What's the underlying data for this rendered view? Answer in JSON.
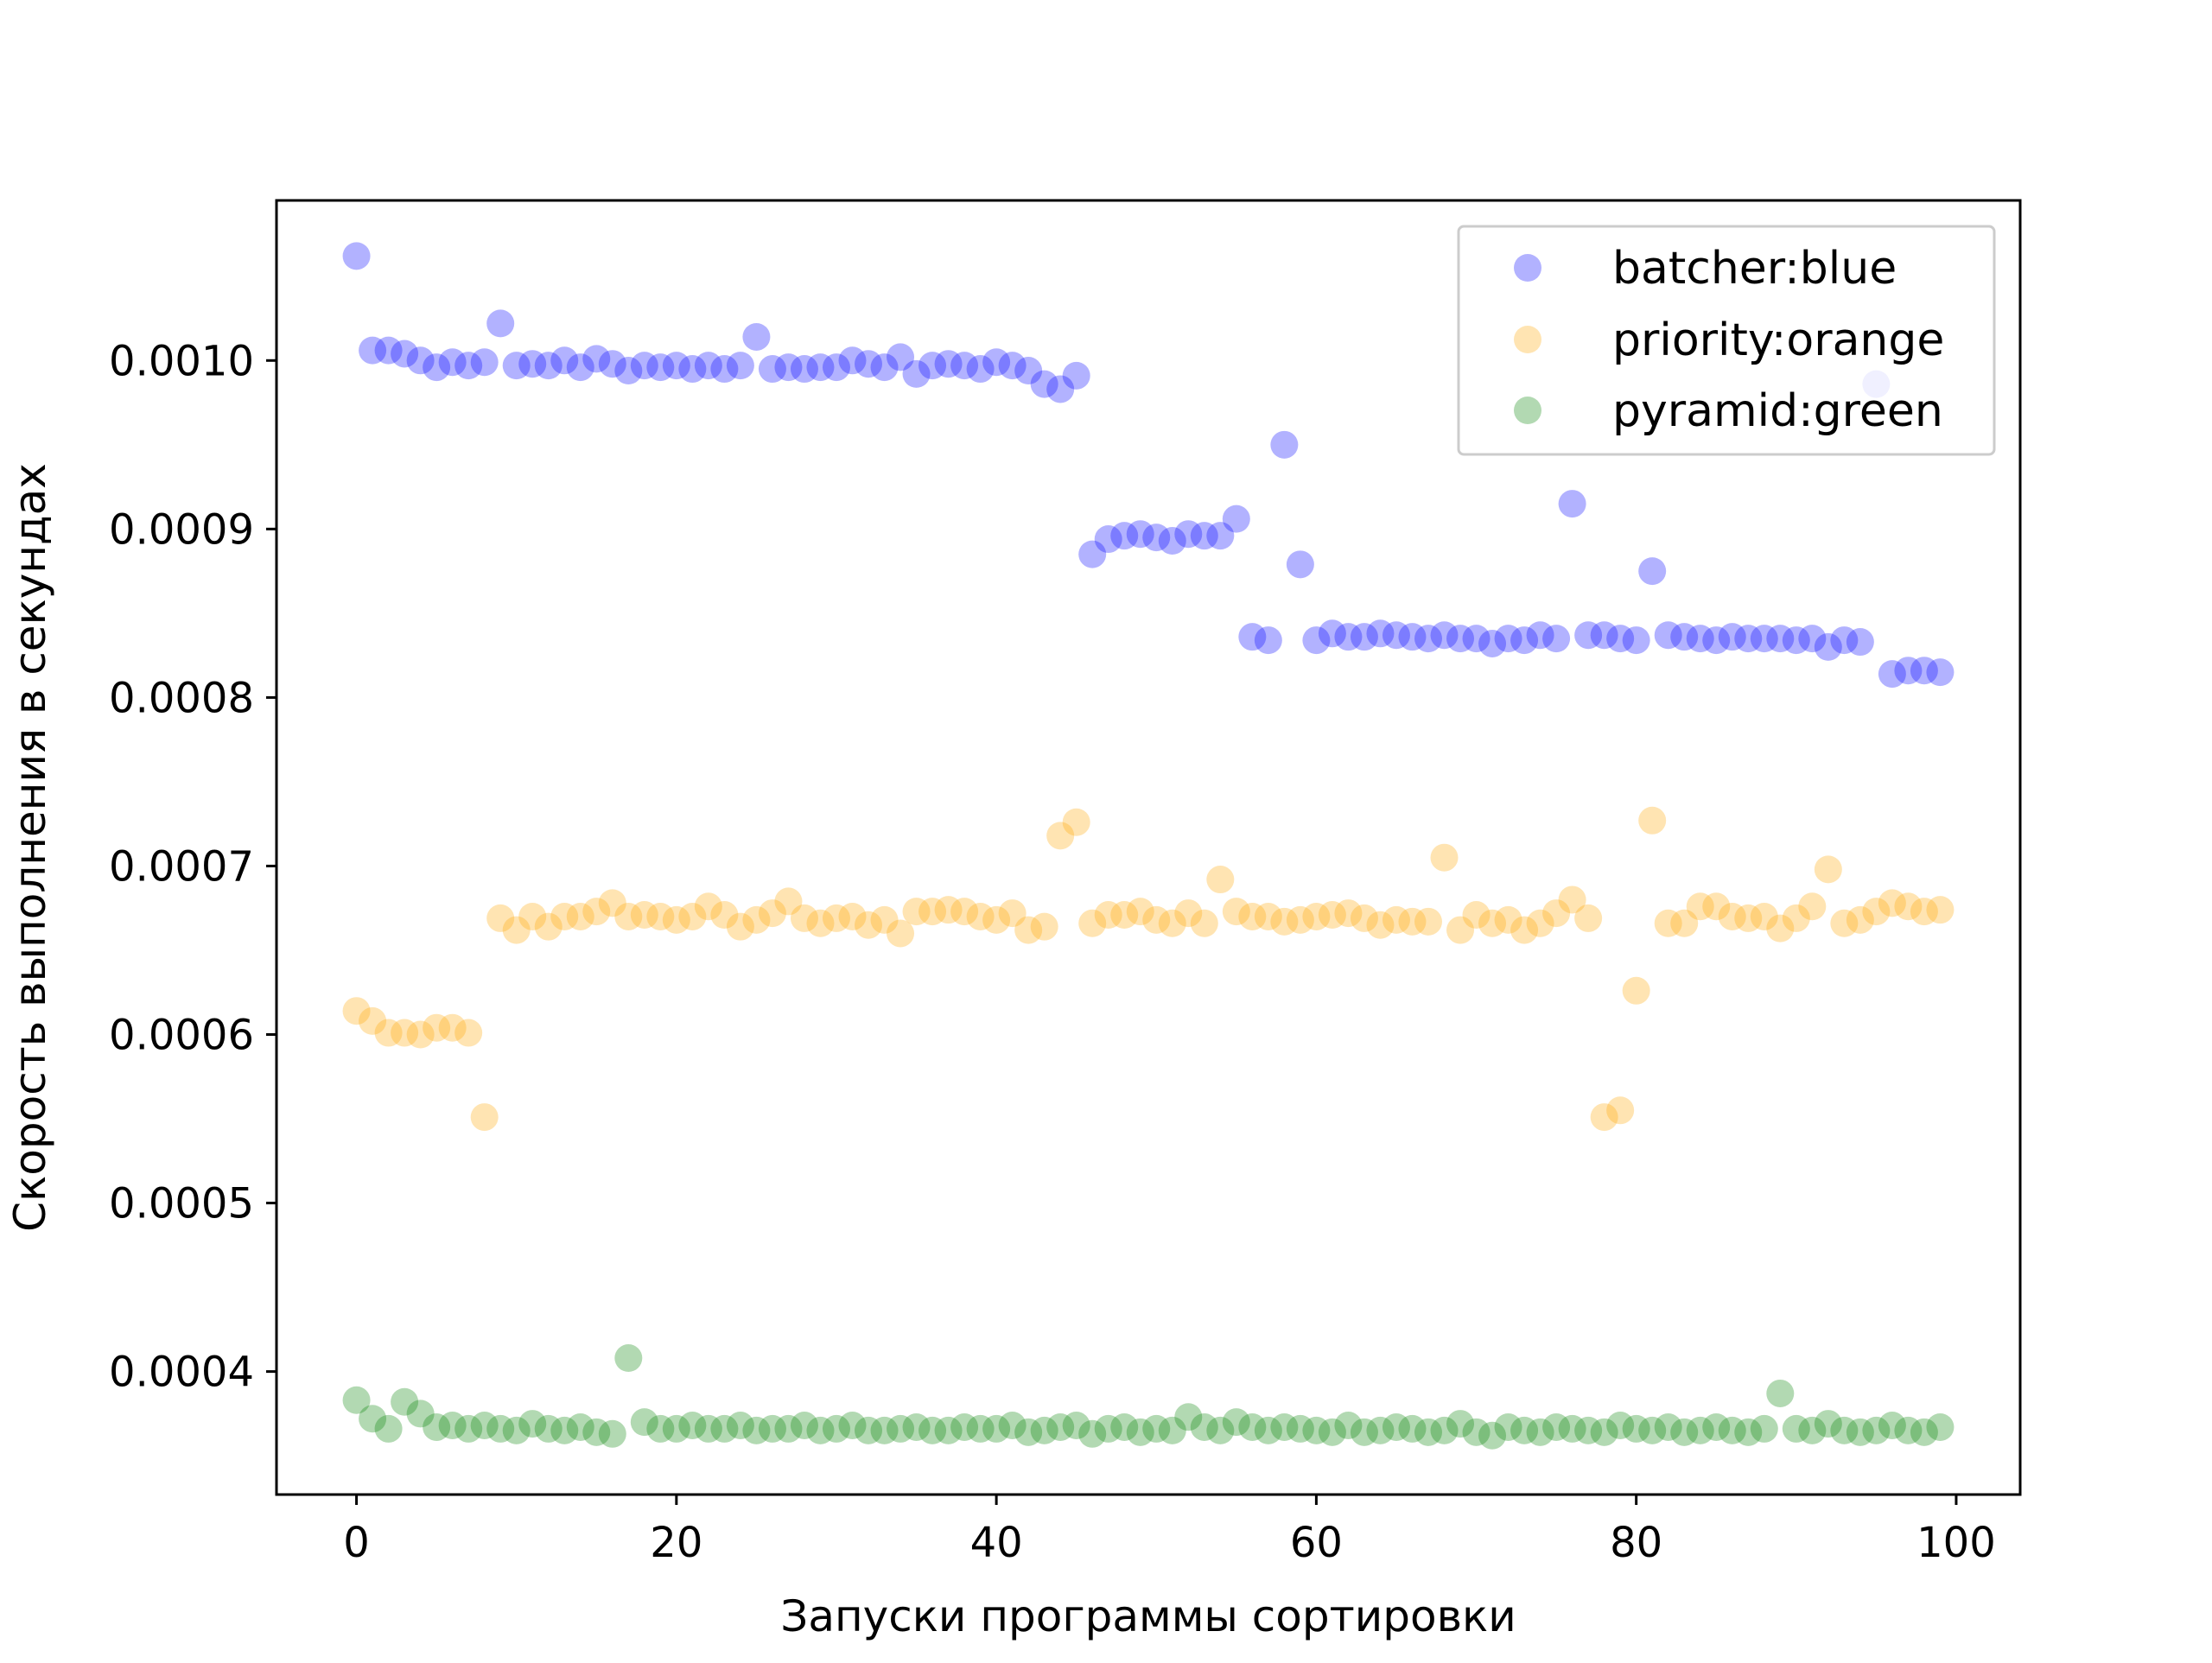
{
  "chart_data": {
    "type": "scatter",
    "title": "",
    "xlabel": "Запуски программы сортировки",
    "ylabel": "Скорость выполнения в секундах",
    "xlim": [
      -5,
      104
    ],
    "ylim": [
      0.000327,
      0.001095
    ],
    "xticks": [
      0,
      20,
      40,
      60,
      80,
      100
    ],
    "xtick_labels": [
      "0",
      "20",
      "40",
      "60",
      "80",
      "100"
    ],
    "yticks": [
      0.0004,
      0.0005,
      0.0006,
      0.0007,
      0.0008,
      0.0009,
      0.001
    ],
    "ytick_labels": [
      "0.0004",
      "0.0005",
      "0.0006",
      "0.0007",
      "0.0008",
      "0.0009",
      "0.0010"
    ],
    "grid": false,
    "legend_position": "top-right",
    "x": [
      0,
      1,
      2,
      3,
      4,
      5,
      6,
      7,
      8,
      9,
      10,
      11,
      12,
      13,
      14,
      15,
      16,
      17,
      18,
      19,
      20,
      21,
      22,
      23,
      24,
      25,
      26,
      27,
      28,
      29,
      30,
      31,
      32,
      33,
      34,
      35,
      36,
      37,
      38,
      39,
      40,
      41,
      42,
      43,
      44,
      45,
      46,
      47,
      48,
      49,
      50,
      51,
      52,
      53,
      54,
      55,
      56,
      57,
      58,
      59,
      60,
      61,
      62,
      63,
      64,
      65,
      66,
      67,
      68,
      69,
      70,
      71,
      72,
      73,
      74,
      75,
      76,
      77,
      78,
      79,
      80,
      81,
      82,
      83,
      84,
      85,
      86,
      87,
      88,
      89,
      90,
      91,
      92,
      93,
      94,
      95,
      96,
      97,
      98,
      99
    ],
    "series": [
      {
        "name": "batcher:blue",
        "color": "#0000ff",
        "values": [
          0.001062,
          0.001006,
          0.001006,
          0.001004,
          0.001,
          0.000996,
          0.000999,
          0.000997,
          0.000999,
          0.001022,
          0.000997,
          0.000998,
          0.000997,
          0.001,
          0.000996,
          0.001001,
          0.000998,
          0.000994,
          0.000997,
          0.000996,
          0.000997,
          0.000995,
          0.000997,
          0.000995,
          0.000997,
          0.001014,
          0.000995,
          0.000996,
          0.000995,
          0.000996,
          0.000996,
          0.001,
          0.000998,
          0.000996,
          0.001002,
          0.000992,
          0.000997,
          0.000998,
          0.000997,
          0.000995,
          0.000999,
          0.000997,
          0.000994,
          0.000986,
          0.000983,
          0.000991,
          0.000885,
          0.000894,
          0.000896,
          0.000897,
          0.000895,
          0.000893,
          0.000897,
          0.000896,
          0.000896,
          0.000906,
          0.000836,
          0.000834,
          0.00095,
          0.000879,
          0.000834,
          0.000838,
          0.000836,
          0.000836,
          0.000838,
          0.000837,
          0.000836,
          0.000835,
          0.000837,
          0.000835,
          0.000835,
          0.000832,
          0.000835,
          0.000834,
          0.000837,
          0.000835,
          0.000915,
          0.000837,
          0.000837,
          0.000835,
          0.000834,
          0.000875,
          0.000837,
          0.000836,
          0.000835,
          0.000834,
          0.000836,
          0.000835,
          0.000835,
          0.000835,
          0.000834,
          0.000835,
          0.00083,
          0.000834,
          0.000833,
          0.000986,
          0.000814,
          0.000816,
          0.000816,
          0.000815
        ]
      },
      {
        "name": "priority:orange",
        "color": "#ffa500",
        "values": [
          0.000614,
          0.000608,
          0.000601,
          0.000601,
          0.0006,
          0.000604,
          0.000604,
          0.000601,
          0.000551,
          0.000669,
          0.000662,
          0.00067,
          0.000664,
          0.00067,
          0.00067,
          0.000673,
          0.000678,
          0.00067,
          0.000671,
          0.00067,
          0.000668,
          0.00067,
          0.000676,
          0.000671,
          0.000664,
          0.000668,
          0.000672,
          0.000679,
          0.000669,
          0.000666,
          0.000669,
          0.00067,
          0.000665,
          0.000668,
          0.00066,
          0.000673,
          0.000673,
          0.000674,
          0.000673,
          0.00067,
          0.000668,
          0.000672,
          0.000662,
          0.000664,
          0.000718,
          0.000726,
          0.000666,
          0.000671,
          0.000671,
          0.000673,
          0.000668,
          0.000666,
          0.000672,
          0.000666,
          0.000692,
          0.000673,
          0.00067,
          0.00067,
          0.000667,
          0.000668,
          0.00067,
          0.000671,
          0.000672,
          0.000669,
          0.000665,
          0.000668,
          0.000667,
          0.000667,
          0.000705,
          0.000662,
          0.000671,
          0.000666,
          0.000668,
          0.000662,
          0.000666,
          0.000672,
          0.00068,
          0.000669,
          0.000551,
          0.000555,
          0.000626,
          0.000727,
          0.000666,
          0.000666,
          0.000676,
          0.000676,
          0.00067,
          0.000669,
          0.00067,
          0.000663,
          0.000669,
          0.000676,
          0.000698,
          0.000666,
          0.000668,
          0.000673,
          0.000678,
          0.000676,
          0.000673,
          0.000674
        ]
      },
      {
        "name": "pyramid:green",
        "color": "#008000",
        "values": [
          0.000383,
          0.000372,
          0.000366,
          0.000382,
          0.000375,
          0.000367,
          0.000368,
          0.000366,
          0.000368,
          0.000366,
          0.000365,
          0.000369,
          0.000366,
          0.000365,
          0.000367,
          0.000364,
          0.000363,
          0.000408,
          0.00037,
          0.000366,
          0.000366,
          0.000368,
          0.000366,
          0.000366,
          0.000368,
          0.000365,
          0.000366,
          0.000366,
          0.000368,
          0.000365,
          0.000366,
          0.000368,
          0.000365,
          0.000365,
          0.000366,
          0.000367,
          0.000365,
          0.000365,
          0.000367,
          0.000366,
          0.000366,
          0.000368,
          0.000364,
          0.000365,
          0.000367,
          0.000368,
          0.000363,
          0.000366,
          0.000367,
          0.000364,
          0.000366,
          0.000365,
          0.000373,
          0.000367,
          0.000365,
          0.00037,
          0.000367,
          0.000365,
          0.000367,
          0.000366,
          0.000365,
          0.000364,
          0.000368,
          0.000364,
          0.000365,
          0.000367,
          0.000366,
          0.000364,
          0.000365,
          0.000369,
          0.000364,
          0.000362,
          0.000367,
          0.000365,
          0.000364,
          0.000367,
          0.000366,
          0.000365,
          0.000364,
          0.000368,
          0.000366,
          0.000365,
          0.000367,
          0.000364,
          0.000365,
          0.000367,
          0.000365,
          0.000364,
          0.000366,
          0.000387,
          0.000366,
          0.000365,
          0.000369,
          0.000365,
          0.000364,
          0.000365,
          0.000368,
          0.000365,
          0.000364,
          0.000367
        ]
      }
    ]
  }
}
